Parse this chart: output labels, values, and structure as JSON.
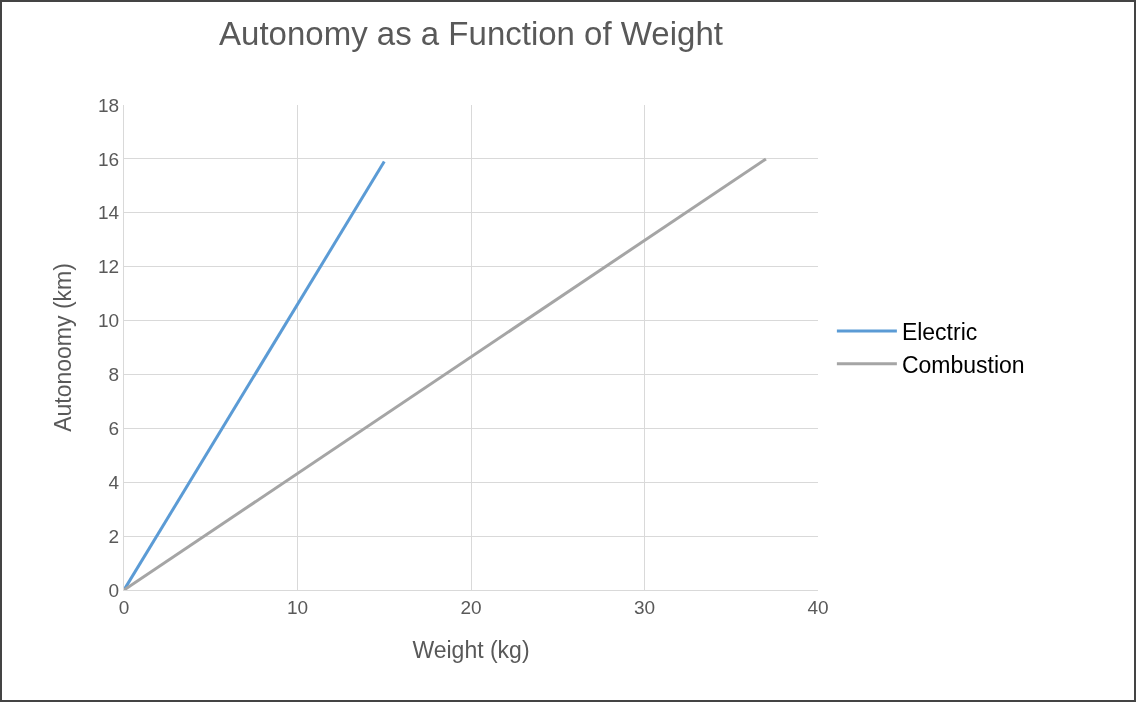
{
  "chart_data": {
    "type": "line",
    "title": "Autonomy as a Function of Weight",
    "xlabel": "Weight (kg)",
    "ylabel": "Autonoomy (km)",
    "x": [
      0,
      15
    ],
    "series": [
      {
        "name": "Electric",
        "color": "#5b9bd5",
        "values": [
          0,
          15.9
        ]
      },
      {
        "name": "Combustion",
        "color": "#a5a5a5",
        "x": [
          0,
          37
        ],
        "values": [
          0,
          16
        ]
      }
    ],
    "xlim": [
      0,
      40
    ],
    "xticks": [
      0,
      10,
      20,
      30,
      40
    ],
    "ylim": [
      0,
      18
    ],
    "yticks": [
      0,
      2,
      4,
      6,
      8,
      10,
      12,
      14,
      16,
      18
    ],
    "grid": true,
    "legend": "right",
    "marker": "none",
    "line_style": "solid"
  }
}
